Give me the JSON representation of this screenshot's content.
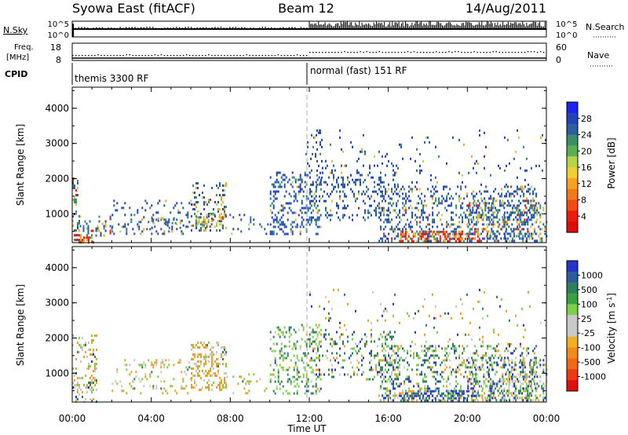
{
  "header": {
    "station": "Syowa East (fitACF)",
    "beam": "Beam 12",
    "date": "14/Aug/2011"
  },
  "sky_panel": {
    "left_label": "N.Sky",
    "left_ticks": [
      "10^5",
      "10^0"
    ],
    "right_ticks": [
      "10^5",
      "10^0"
    ],
    "right_label": "N.Search"
  },
  "freq_panel": {
    "left_label_line1": "Freq.",
    "left_label_line2": "[MHz]",
    "left_ticks": [
      "18",
      "8"
    ],
    "right_ticks": [
      "60",
      "0"
    ],
    "right_label": "Nave"
  },
  "cpid_panel": {
    "label": "CPID",
    "modes": [
      {
        "name": "themis 3300 RF",
        "start_hour": 0
      },
      {
        "name": "normal (fast) 151 RF",
        "start_hour": 12
      }
    ]
  },
  "chart_data": [
    {
      "type": "heatmap",
      "name": "power-panel",
      "ylabel": "Slant Range [km]",
      "x_range_hours": [
        0,
        24
      ],
      "ylim": [
        180,
        4600
      ],
      "yticks": [
        1000,
        2000,
        3000,
        4000
      ],
      "colorbar": {
        "title": "Power [dB]",
        "tick_labels": [
          "4",
          "8",
          "12",
          "16",
          "20",
          "24",
          "28"
        ],
        "colors": [
          "#1e22f0",
          "#2244bb",
          "#2f5ea0",
          "#3a8f6a",
          "#58b050",
          "#b6d24a",
          "#f0d030",
          "#f6a21e",
          "#f07a18",
          "#f24a12",
          "#ee1a10",
          "#e00c0c"
        ]
      },
      "scatter_regions": [
        {
          "t": [
            0.0,
            0.4
          ],
          "r": [
            200,
            2100
          ],
          "density": 0.5,
          "color_weights": [
            0.15,
            0.3,
            0.25,
            0.15,
            0.1,
            0.05
          ]
        },
        {
          "t": [
            0.0,
            1.1
          ],
          "r": [
            200,
            420
          ],
          "density": 0.85,
          "color_weights": [
            0.0,
            0.05,
            0.15,
            0.2,
            0.3,
            0.3
          ]
        },
        {
          "t": [
            0.3,
            2.0
          ],
          "r": [
            380,
            950
          ],
          "density": 0.35,
          "color_weights": [
            0.2,
            0.3,
            0.2,
            0.15,
            0.1,
            0.05
          ]
        },
        {
          "t": [
            2.0,
            6.0
          ],
          "r": [
            400,
            1400
          ],
          "density": 0.22,
          "color_weights": [
            0.45,
            0.35,
            0.1,
            0.06,
            0.04,
            0.0
          ]
        },
        {
          "t": [
            4.0,
            5.6
          ],
          "r": [
            600,
            900
          ],
          "density": 0.35,
          "color_weights": [
            0.15,
            0.25,
            0.25,
            0.2,
            0.15,
            0.0
          ]
        },
        {
          "t": [
            6.0,
            7.8
          ],
          "r": [
            500,
            1900
          ],
          "density": 0.4,
          "color_weights": [
            0.2,
            0.3,
            0.25,
            0.15,
            0.1,
            0.0
          ]
        },
        {
          "t": [
            6.3,
            7.8
          ],
          "r": [
            620,
            1000
          ],
          "density": 0.6,
          "color_weights": [
            0.05,
            0.1,
            0.25,
            0.3,
            0.25,
            0.05
          ]
        },
        {
          "t": [
            7.8,
            10.0
          ],
          "r": [
            400,
            1000
          ],
          "density": 0.18,
          "color_weights": [
            0.4,
            0.35,
            0.15,
            0.1,
            0.0,
            0.0
          ]
        },
        {
          "t": [
            10.0,
            12.6
          ],
          "r": [
            400,
            2200
          ],
          "density": 0.45,
          "color_weights": [
            0.5,
            0.3,
            0.12,
            0.05,
            0.03,
            0.0
          ]
        },
        {
          "t": [
            11.8,
            12.6
          ],
          "r": [
            1800,
            3400
          ],
          "density": 0.2,
          "color_weights": [
            0.65,
            0.25,
            0.1,
            0.0,
            0.0,
            0.0
          ]
        },
        {
          "t": [
            12.0,
            16.6
          ],
          "r": [
            800,
            2400
          ],
          "density": 0.3,
          "color_weights": [
            0.5,
            0.3,
            0.12,
            0.05,
            0.03,
            0.0
          ]
        },
        {
          "t": [
            12.0,
            24.0
          ],
          "r": [
            1800,
            3400
          ],
          "density": 0.05,
          "color_weights": [
            0.55,
            0.2,
            0.1,
            0.1,
            0.05,
            0.0
          ]
        },
        {
          "t": [
            15.5,
            23.5
          ],
          "r": [
            250,
            1800
          ],
          "density": 0.42,
          "color_weights": [
            0.4,
            0.3,
            0.15,
            0.08,
            0.05,
            0.02
          ]
        },
        {
          "t": [
            16.6,
            20.6
          ],
          "r": [
            220,
            520
          ],
          "density": 0.9,
          "color_weights": [
            0.0,
            0.02,
            0.05,
            0.13,
            0.3,
            0.5
          ]
        },
        {
          "t": [
            20.0,
            24.0
          ],
          "r": [
            200,
            1400
          ],
          "density": 0.5,
          "color_weights": [
            0.2,
            0.25,
            0.2,
            0.15,
            0.12,
            0.08
          ]
        }
      ]
    },
    {
      "type": "heatmap",
      "name": "velocity-panel",
      "ylabel": "Slant Range [km]",
      "x_range_hours": [
        0,
        24
      ],
      "ylim": [
        180,
        4600
      ],
      "yticks": [
        1000,
        2000,
        3000,
        4000
      ],
      "xtick_labels": [
        "00:00",
        "04:00",
        "08:00",
        "12:00",
        "16:00",
        "20:00",
        "00:00"
      ],
      "xlabel": "Time UT",
      "colorbar": {
        "title": "Velocity [m s^-1]",
        "tick_labels": [
          "1000",
          "500",
          "100",
          "25",
          "-25",
          "-100",
          "-500",
          "-1000"
        ],
        "colors": [
          "#2434c8",
          "#2e5aa0",
          "#2e7f5e",
          "#3aa040",
          "#7ccf4a",
          "#c8c8c8",
          "#c8c8c8",
          "#f0b020",
          "#f08a18",
          "#f06a16",
          "#ee3a14",
          "#e01010"
        ]
      },
      "scatter_regions": [
        {
          "t": [
            0.0,
            1.2
          ],
          "r": [
            200,
            2100
          ],
          "density": 0.45,
          "color_weights": [
            0.05,
            0.1,
            0.15,
            0.35,
            0.35
          ]
        },
        {
          "t": [
            2.0,
            6.0
          ],
          "r": [
            400,
            1400
          ],
          "density": 0.25,
          "color_weights": [
            0.0,
            0.05,
            0.2,
            0.45,
            0.3
          ]
        },
        {
          "t": [
            6.0,
            7.8
          ],
          "r": [
            550,
            1900
          ],
          "density": 0.6,
          "color_weights": [
            0.0,
            0.03,
            0.12,
            0.55,
            0.3
          ]
        },
        {
          "t": [
            7.8,
            10.0
          ],
          "r": [
            400,
            1000
          ],
          "density": 0.2,
          "color_weights": [
            0.0,
            0.05,
            0.6,
            0.25,
            0.1
          ]
        },
        {
          "t": [
            10.0,
            12.6
          ],
          "r": [
            400,
            2400
          ],
          "density": 0.4,
          "color_weights": [
            0.05,
            0.35,
            0.45,
            0.1,
            0.05
          ]
        },
        {
          "t": [
            12.0,
            24.0
          ],
          "r": [
            1800,
            3400
          ],
          "density": 0.05,
          "color_weights": [
            0.15,
            0.2,
            0.1,
            0.35,
            0.2
          ]
        },
        {
          "t": [
            12.0,
            16.6
          ],
          "r": [
            800,
            2200
          ],
          "density": 0.3,
          "color_weights": [
            0.15,
            0.4,
            0.15,
            0.2,
            0.1
          ]
        },
        {
          "t": [
            15.5,
            23.5
          ],
          "r": [
            250,
            1800
          ],
          "density": 0.45,
          "color_weights": [
            0.2,
            0.3,
            0.25,
            0.15,
            0.1
          ]
        },
        {
          "t": [
            16.6,
            20.6
          ],
          "r": [
            220,
            520
          ],
          "density": 0.85,
          "color_weights": [
            0.45,
            0.3,
            0.1,
            0.1,
            0.05
          ]
        },
        {
          "t": [
            20.0,
            24.0
          ],
          "r": [
            200,
            1400
          ],
          "density": 0.45,
          "color_weights": [
            0.2,
            0.25,
            0.15,
            0.2,
            0.2
          ]
        }
      ]
    }
  ]
}
